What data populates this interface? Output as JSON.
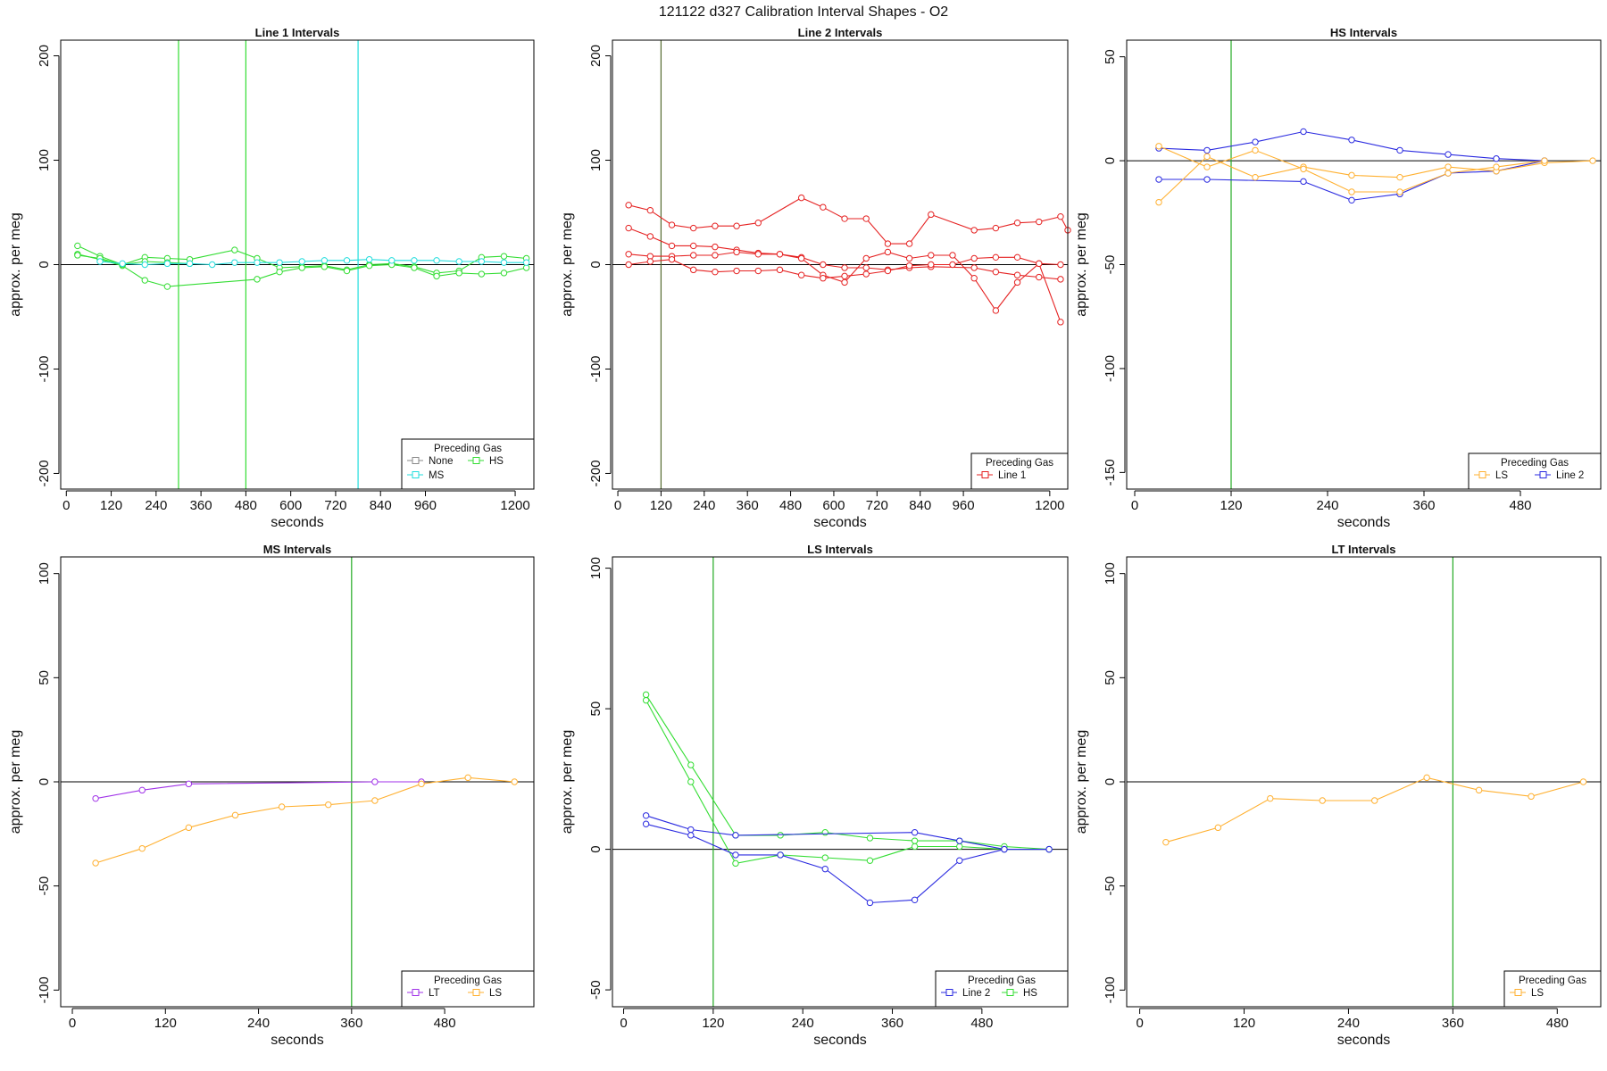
{
  "title": "121122   d327   Calibration Interval Shapes - O2",
  "colors": {
    "None": "#888888",
    "HS": "#33dd33",
    "MS": "#22dddd",
    "Line 1": "#e52222",
    "Line 2": "#2b2be0",
    "LS": "#ffb030",
    "LT": "#a032e8",
    "vline_green": "#22aa22"
  },
  "chart_data": [
    {
      "type": "line",
      "title": "Line 1 Intervals",
      "xlabel": "seconds",
      "ylabel": "approx. per meg",
      "xlim": [
        -15,
        1250
      ],
      "ylim": [
        -215,
        215
      ],
      "xticks": [
        0,
        120,
        240,
        360,
        480,
        600,
        720,
        840,
        960,
        1200
      ],
      "yticks": [
        -200,
        -100,
        0,
        100,
        200
      ],
      "vlines": [
        {
          "x": 300,
          "color": "HS"
        },
        {
          "x": 480,
          "color": "HS"
        },
        {
          "x": 780,
          "color": "MS"
        }
      ],
      "legend": {
        "title": "Preceding Gas",
        "entries": [
          "None",
          "HS",
          "MS"
        ],
        "position": "bottom-right",
        "cols": 2
      },
      "series": [
        {
          "name": "HS",
          "x": [
            30,
            90,
            150,
            210,
            270,
            330,
            450,
            510,
            570,
            630,
            690,
            750,
            810,
            870,
            930,
            990,
            1050,
            1110,
            1170,
            1230
          ],
          "y": [
            18,
            8,
            0,
            7,
            6,
            5,
            14,
            6,
            -3,
            -2,
            -1,
            -5,
            0,
            1,
            -2,
            -8,
            -6,
            7,
            8,
            6
          ]
        },
        {
          "name": "HS",
          "x": [
            30,
            90,
            150,
            210,
            270,
            510,
            570,
            630,
            690,
            750,
            810,
            870,
            930,
            990,
            1050,
            1110,
            1170,
            1230
          ],
          "y": [
            10,
            5,
            -1,
            -15,
            -21,
            -14,
            -7,
            -3,
            -2,
            -6,
            -1,
            0,
            -3,
            -11,
            -8,
            -9,
            -8,
            -3
          ]
        },
        {
          "name": "HS",
          "x": [
            30,
            90,
            150,
            210,
            270,
            330
          ],
          "y": [
            9,
            6,
            0,
            3,
            2,
            1
          ]
        },
        {
          "name": "MS",
          "x": [
            90,
            150,
            210,
            270,
            330,
            390,
            450,
            510,
            570,
            630,
            690,
            750,
            810,
            870,
            930,
            990,
            1050,
            1110,
            1170,
            1230
          ],
          "y": [
            3,
            1,
            0,
            1,
            1,
            0,
            2,
            2,
            2,
            3,
            4,
            4,
            5,
            4,
            4,
            4,
            3,
            3,
            2,
            2
          ]
        }
      ]
    },
    {
      "type": "line",
      "title": "Line 2 Intervals",
      "xlabel": "seconds",
      "ylabel": "approx. per meg",
      "xlim": [
        -15,
        1250
      ],
      "ylim": [
        -215,
        215
      ],
      "xticks": [
        0,
        120,
        240,
        360,
        480,
        600,
        720,
        840,
        960,
        1200
      ],
      "yticks": [
        -200,
        -100,
        0,
        100,
        200
      ],
      "vlines": [
        {
          "x": 120,
          "color": "#556b2f"
        }
      ],
      "legend": {
        "title": "Preceding Gas",
        "entries": [
          "Line 1"
        ],
        "position": "bottom-right",
        "cols": 1
      },
      "series": [
        {
          "name": "Line 1",
          "x": [
            30,
            90,
            150,
            210,
            270,
            330,
            390,
            510,
            570,
            630,
            690,
            750,
            810,
            870,
            990,
            1050,
            1110,
            1170,
            1230,
            1250
          ],
          "y": [
            57,
            52,
            38,
            35,
            37,
            37,
            40,
            64,
            55,
            44,
            44,
            20,
            20,
            48,
            33,
            35,
            40,
            41,
            46,
            33
          ]
        },
        {
          "name": "Line 1",
          "x": [
            30,
            90,
            150,
            210,
            270,
            330,
            390,
            450,
            510,
            570,
            630,
            690,
            750,
            810,
            870,
            990,
            1050,
            1110,
            1170,
            1230
          ],
          "y": [
            35,
            27,
            18,
            18,
            17,
            14,
            11,
            10,
            7,
            0,
            -3,
            -3,
            -5,
            -3,
            -2,
            -3,
            -7,
            -10,
            -12,
            -14
          ]
        },
        {
          "name": "Line 1",
          "x": [
            30,
            90,
            150,
            210,
            270,
            330,
            390,
            450,
            510,
            570,
            630,
            690,
            750,
            810,
            870,
            930,
            990,
            1050,
            1110,
            1170,
            1230
          ],
          "y": [
            10,
            8,
            8,
            9,
            9,
            12,
            10,
            10,
            6,
            -10,
            -17,
            6,
            12,
            6,
            9,
            9,
            -13,
            -44,
            -17,
            1,
            -55
          ]
        },
        {
          "name": "Line 1",
          "x": [
            30,
            90,
            150,
            210,
            270,
            330,
            390,
            450,
            510,
            570,
            630,
            690,
            750,
            810,
            870,
            930,
            990,
            1050,
            1110,
            1170,
            1230
          ],
          "y": [
            0,
            3,
            5,
            -5,
            -7,
            -6,
            -6,
            -5,
            -10,
            -13,
            -11,
            -9,
            -6,
            -1,
            0,
            0,
            6,
            7,
            7,
            1,
            0
          ]
        }
      ]
    },
    {
      "type": "line",
      "title": "HS Intervals",
      "xlabel": "seconds",
      "ylabel": "approx. per meg",
      "xlim": [
        -10,
        580
      ],
      "ylim": [
        -158,
        58
      ],
      "xticks": [
        0,
        120,
        240,
        360,
        480
      ],
      "yticks": [
        -150,
        -100,
        -50,
        0,
        50
      ],
      "vlines": [
        {
          "x": 120,
          "color": "vline_green"
        }
      ],
      "legend": {
        "title": "Preceding Gas",
        "entries": [
          "LS",
          "Line 2"
        ],
        "position": "bottom-right",
        "cols": 2
      },
      "series": [
        {
          "name": "Line 2",
          "x": [
            30,
            90,
            150,
            210,
            270,
            330,
            390,
            450,
            510
          ],
          "y": [
            6,
            5,
            9,
            14,
            10,
            5,
            3,
            1,
            0
          ]
        },
        {
          "name": "Line 2",
          "x": [
            30,
            90,
            210,
            270,
            330,
            390,
            450,
            510
          ],
          "y": [
            -9,
            -9,
            -10,
            -19,
            -16,
            -6,
            -5,
            0
          ]
        },
        {
          "name": "LS",
          "x": [
            30,
            90,
            150,
            210,
            270,
            330,
            390,
            450,
            510,
            570
          ],
          "y": [
            -20,
            2,
            -8,
            -3,
            -7,
            -8,
            -3,
            -5,
            -1,
            0
          ]
        },
        {
          "name": "LS",
          "x": [
            30,
            90,
            150,
            210,
            270,
            330,
            390,
            450,
            510
          ],
          "y": [
            7,
            -3,
            5,
            -4,
            -15,
            -15,
            -6,
            -3,
            0
          ]
        }
      ]
    },
    {
      "type": "line",
      "title": "MS Intervals",
      "xlabel": "seconds",
      "ylabel": "approx. per meg",
      "xlim": [
        -15,
        595
      ],
      "ylim": [
        -108,
        108
      ],
      "xticks": [
        0,
        120,
        240,
        360,
        480
      ],
      "yticks": [
        -100,
        -50,
        0,
        50,
        100
      ],
      "vlines": [
        {
          "x": 360,
          "color": "vline_green"
        }
      ],
      "legend": {
        "title": "Preceding Gas",
        "entries": [
          "LT",
          "LS"
        ],
        "position": "bottom-right",
        "cols": 2
      },
      "series": [
        {
          "name": "LT",
          "x": [
            30,
            90,
            150,
            390,
            450
          ],
          "y": [
            -8,
            -4,
            -1,
            0,
            0
          ]
        },
        {
          "name": "LS",
          "x": [
            30,
            90,
            150,
            210,
            270,
            330,
            390,
            450,
            510,
            570
          ],
          "y": [
            -39,
            -32,
            -22,
            -16,
            -12,
            -11,
            -9,
            -1,
            2,
            0
          ]
        }
      ]
    },
    {
      "type": "line",
      "title": "LS Intervals",
      "xlabel": "seconds",
      "ylabel": "approx. per meg",
      "xlim": [
        -15,
        595
      ],
      "ylim": [
        -56,
        104
      ],
      "xticks": [
        0,
        120,
        240,
        360,
        480
      ],
      "yticks": [
        -50,
        0,
        50,
        100
      ],
      "vlines": [
        {
          "x": 120,
          "color": "vline_green"
        }
      ],
      "legend": {
        "title": "Preceding Gas",
        "entries": [
          "Line 2",
          "HS"
        ],
        "position": "bottom-right",
        "cols": 2
      },
      "series": [
        {
          "name": "HS",
          "x": [
            30,
            90,
            150,
            210,
            270,
            330,
            390,
            450,
            510,
            570
          ],
          "y": [
            55,
            30,
            5,
            5,
            6,
            4,
            3,
            3,
            1,
            0
          ]
        },
        {
          "name": "HS",
          "x": [
            30,
            90,
            150,
            210,
            270,
            330,
            390,
            450,
            510,
            570
          ],
          "y": [
            53,
            24,
            -5,
            -2,
            -3,
            -4,
            1,
            1,
            0,
            0
          ]
        },
        {
          "name": "Line 2",
          "x": [
            30,
            90,
            150,
            390,
            450,
            510,
            570
          ],
          "y": [
            12,
            7,
            5,
            6,
            3,
            0,
            0
          ]
        },
        {
          "name": "Line 2",
          "x": [
            30,
            90,
            150,
            210,
            270,
            330,
            390,
            450,
            510,
            570
          ],
          "y": [
            9,
            5,
            -2,
            -2,
            -7,
            -19,
            -18,
            -4,
            0,
            0
          ]
        }
      ]
    },
    {
      "type": "line",
      "title": "LT Intervals",
      "xlabel": "seconds",
      "ylabel": "approx. per meg",
      "xlim": [
        -15,
        530
      ],
      "ylim": [
        -108,
        108
      ],
      "xticks": [
        0,
        120,
        240,
        360,
        480
      ],
      "yticks": [
        -100,
        -50,
        0,
        50,
        100
      ],
      "vlines": [
        {
          "x": 360,
          "color": "vline_green"
        }
      ],
      "legend": {
        "title": "Preceding Gas",
        "entries": [
          "LS"
        ],
        "position": "bottom-right",
        "cols": 1
      },
      "series": [
        {
          "name": "LS",
          "x": [
            30,
            90,
            150,
            210,
            270,
            330,
            390,
            450,
            510
          ],
          "y": [
            -29,
            -22,
            -8,
            -9,
            -9,
            2,
            -4,
            -7,
            0
          ]
        }
      ]
    }
  ]
}
